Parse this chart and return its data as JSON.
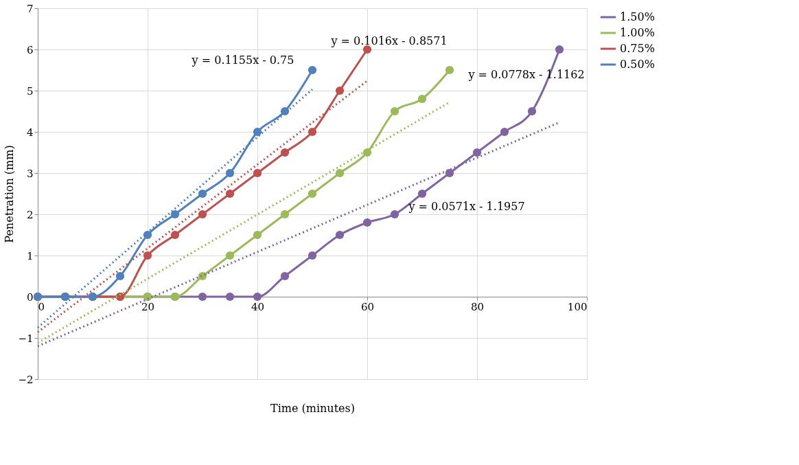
{
  "chart_data": {
    "type": "line",
    "xlabel": "Time (minutes)",
    "ylabel": "Penetration (mm)",
    "xlim": [
      0,
      100
    ],
    "xticks": [
      0,
      20,
      40,
      60,
      80,
      100
    ],
    "ylim": [
      -2,
      7
    ],
    "yticks": [
      -2,
      -1,
      0,
      1,
      2,
      3,
      4,
      5,
      6,
      7
    ],
    "grid": true,
    "legend": "right",
    "marker": "circle",
    "line_style": "solid",
    "series": [
      {
        "name": "1.50%",
        "color": "#8064a2",
        "x": [
          0,
          5,
          10,
          15,
          20,
          25,
          30,
          35,
          40,
          45,
          50,
          55,
          60,
          65,
          70,
          75,
          80,
          85,
          90,
          95
        ],
        "values": [
          0,
          0,
          0,
          0,
          0,
          0,
          0,
          0,
          0,
          0.5,
          1,
          1.5,
          1.8,
          2,
          2.5,
          3,
          3.5,
          4,
          4.5,
          6
        ]
      },
      {
        "name": "1.00%",
        "color": "#9bbb59",
        "x": [
          10,
          15,
          20,
          25,
          30,
          35,
          40,
          45,
          50,
          55,
          60,
          65,
          70,
          75
        ],
        "values": [
          0,
          0,
          0,
          0,
          0.5,
          1,
          1.5,
          2,
          2.5,
          3,
          3.5,
          4.5,
          4.8,
          5.5
        ]
      },
      {
        "name": "0.75%",
        "color": "#c0504d",
        "x": [
          0,
          5,
          10,
          15,
          20,
          25,
          30,
          35,
          40,
          45,
          50,
          55,
          60
        ],
        "values": [
          0,
          0,
          0,
          0,
          1,
          1.5,
          2,
          2.5,
          3,
          3.5,
          4,
          5,
          6
        ]
      },
      {
        "name": "0.50%",
        "color": "#4f81bd",
        "x": [
          0,
          5,
          10,
          15,
          20,
          25,
          30,
          35,
          40,
          45,
          50
        ],
        "values": [
          0,
          0,
          0,
          0.5,
          1.5,
          2,
          2.5,
          3,
          4,
          4.5,
          5.5
        ]
      },
      {
        "type": "line",
        "color": "#8064a2",
        "line_style": "dotted",
        "marker": "none",
        "x": [
          0,
          95
        ],
        "values": [
          -1.2,
          4.23
        ]
      },
      {
        "type": "line",
        "color": "#9bbb59",
        "line_style": "dotted",
        "marker": "none",
        "x": [
          0,
          75
        ],
        "values": [
          -1.12,
          4.72
        ]
      },
      {
        "type": "line",
        "color": "#c0504d",
        "line_style": "dotted",
        "marker": "none",
        "x": [
          0,
          60
        ],
        "values": [
          -0.86,
          5.24
        ]
      },
      {
        "type": "line",
        "color": "#4f81bd",
        "line_style": "dotted",
        "marker": "none",
        "x": [
          0,
          50
        ],
        "values": [
          -0.75,
          5.03
        ]
      }
    ],
    "annotations": [
      "y = 0.0571x - 1.1957",
      "y = 0.0778x - 1.1162",
      "y = 0.1016x - 0.8571",
      "y = 0.1155x - 0.75"
    ]
  }
}
